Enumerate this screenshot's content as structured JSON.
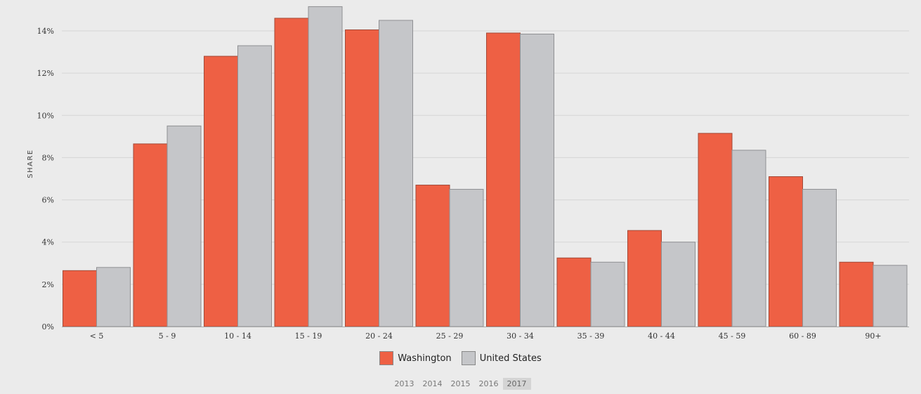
{
  "chart_data": {
    "type": "bar",
    "ylabel": "SHARE",
    "ylim": [
      0,
      15
    ],
    "yticks": [
      "0%",
      "2%",
      "4%",
      "6%",
      "8%",
      "10%",
      "12%",
      "14%"
    ],
    "categories": [
      "< 5",
      "5 - 9",
      "10 - 14",
      "15 - 19",
      "20 - 24",
      "25 - 29",
      "30 - 34",
      "35 - 39",
      "40 - 44",
      "45 - 59",
      "60 - 89",
      "90+"
    ],
    "series": [
      {
        "name": "Washington",
        "color": "#ee6044",
        "values": [
          2.65,
          8.65,
          12.8,
          14.6,
          14.05,
          6.7,
          13.9,
          3.25,
          4.55,
          9.15,
          7.1,
          3.05
        ]
      },
      {
        "name": "United States",
        "color": "#c5c6c9",
        "values": [
          2.8,
          9.5,
          13.3,
          15.15,
          14.5,
          6.5,
          13.85,
          3.05,
          4.0,
          8.35,
          6.5,
          2.9
        ]
      }
    ],
    "grid": true,
    "legend_position": "bottom-center"
  },
  "legend": {
    "washington_label": "Washington",
    "us_label": "United States"
  },
  "years": [
    "2013",
    "2014",
    "2015",
    "2016",
    "2017"
  ],
  "selected_year": "2017"
}
